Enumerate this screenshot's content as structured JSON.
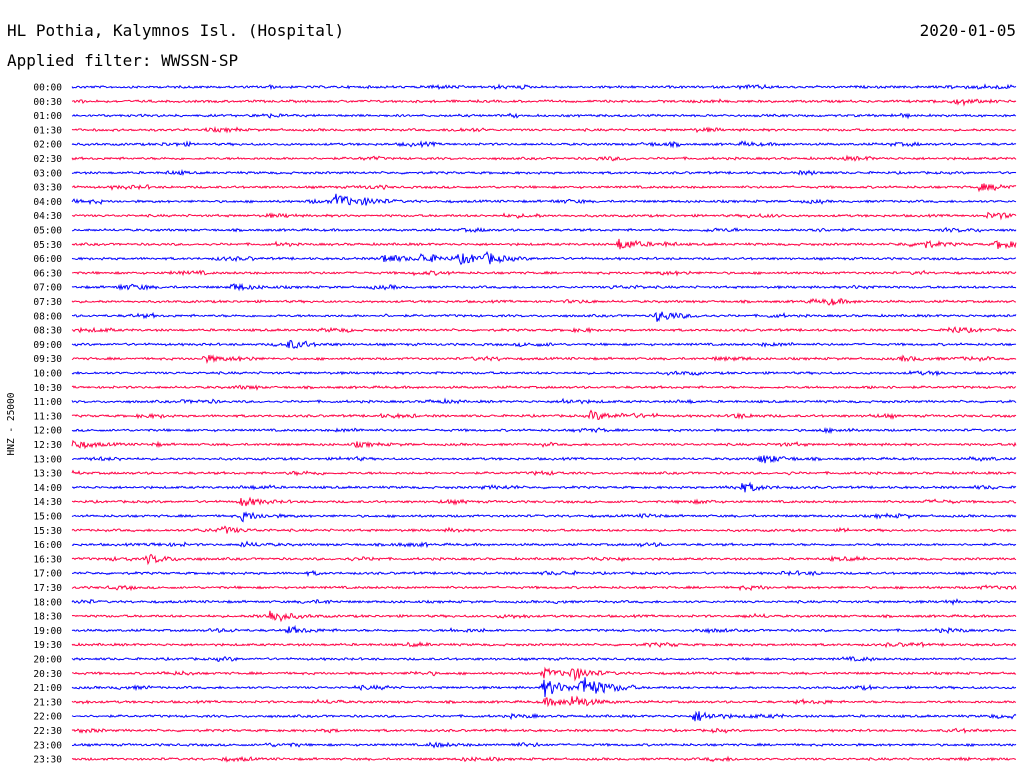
{
  "header": {
    "station": "HL Pothia, Kalymnos Isl. (Hospital)",
    "date": "2020-01-05",
    "filter": "Applied filter: WWSSN-SP"
  },
  "chart_data": {
    "type": "line",
    "title": "HL Pothia, Kalymnos Isl. (Hospital)",
    "ylabel": "HNZ - 25000",
    "trace_colors": [
      "#0000ff",
      "#ff0044"
    ],
    "rows": [
      {
        "label": "00:00",
        "events": [
          [
            0.38,
            1.5
          ],
          [
            0.93,
            1.2
          ]
        ]
      },
      {
        "label": "00:30",
        "events": [
          [
            0.94,
            2.0
          ]
        ]
      },
      {
        "label": "01:00",
        "events": []
      },
      {
        "label": "01:30",
        "events": []
      },
      {
        "label": "02:00",
        "events": [
          [
            0.71,
            1.5
          ]
        ]
      },
      {
        "label": "02:30",
        "events": []
      },
      {
        "label": "03:00",
        "events": []
      },
      {
        "label": "03:30",
        "events": [
          [
            0.96,
            3.0
          ]
        ]
      },
      {
        "label": "04:00",
        "events": [
          [
            0.28,
            6.0
          ],
          [
            0.31,
            2.0
          ]
        ]
      },
      {
        "label": "04:30",
        "events": [
          [
            0.97,
            2.0
          ]
        ]
      },
      {
        "label": "05:00",
        "events": [
          [
            0.78,
            1.8
          ]
        ]
      },
      {
        "label": "05:30",
        "events": [
          [
            0.58,
            5.0
          ],
          [
            0.9,
            3.0
          ],
          [
            0.98,
            4.0
          ]
        ]
      },
      {
        "label": "06:00",
        "events": [
          [
            0.33,
            4.0
          ],
          [
            0.37,
            4.0
          ],
          [
            0.41,
            4.0
          ],
          [
            0.44,
            3.5
          ]
        ]
      },
      {
        "label": "06:30",
        "events": []
      },
      {
        "label": "07:00",
        "events": [
          [
            0.05,
            2.0
          ],
          [
            0.17,
            3.0
          ]
        ]
      },
      {
        "label": "07:30",
        "events": [
          [
            0.8,
            2.0
          ]
        ]
      },
      {
        "label": "08:00",
        "events": [
          [
            0.62,
            5.0
          ]
        ]
      },
      {
        "label": "08:30",
        "events": [
          [
            0.93,
            3.0
          ]
        ]
      },
      {
        "label": "09:00",
        "events": [
          [
            0.23,
            3.0
          ]
        ]
      },
      {
        "label": "09:30",
        "events": [
          [
            0.14,
            3.0
          ],
          [
            0.88,
            2.0
          ]
        ]
      },
      {
        "label": "10:00",
        "events": []
      },
      {
        "label": "10:30",
        "events": []
      },
      {
        "label": "11:00",
        "events": [
          [
            0.52,
            2.0
          ]
        ]
      },
      {
        "label": "11:30",
        "events": [
          [
            0.55,
            4.0
          ],
          [
            0.7,
            2.0
          ]
        ]
      },
      {
        "label": "12:00",
        "events": []
      },
      {
        "label": "12:30",
        "events": [
          [
            0.0,
            4.0
          ],
          [
            0.3,
            2.0
          ]
        ]
      },
      {
        "label": "13:00",
        "events": [
          [
            0.73,
            4.0
          ]
        ]
      },
      {
        "label": "13:30",
        "events": []
      },
      {
        "label": "14:00",
        "events": [
          [
            0.71,
            3.0
          ]
        ]
      },
      {
        "label": "14:30",
        "events": [
          [
            0.18,
            4.0
          ]
        ]
      },
      {
        "label": "15:00",
        "events": [
          [
            0.18,
            4.0
          ]
        ]
      },
      {
        "label": "15:30",
        "events": [
          [
            0.16,
            2.5
          ]
        ]
      },
      {
        "label": "16:00",
        "events": [
          [
            0.18,
            2.0
          ]
        ]
      },
      {
        "label": "16:30",
        "events": [
          [
            0.08,
            4.0
          ]
        ]
      },
      {
        "label": "17:00",
        "events": []
      },
      {
        "label": "17:30",
        "events": []
      },
      {
        "label": "18:00",
        "events": []
      },
      {
        "label": "18:30",
        "events": [
          [
            0.21,
            5.0
          ]
        ]
      },
      {
        "label": "19:00",
        "events": [
          [
            0.23,
            3.0
          ]
        ]
      },
      {
        "label": "19:30",
        "events": []
      },
      {
        "label": "20:00",
        "events": []
      },
      {
        "label": "20:30",
        "events": [
          [
            0.5,
            4.0
          ],
          [
            0.53,
            5.0
          ]
        ]
      },
      {
        "label": "21:00",
        "events": [
          [
            0.5,
            8.0
          ],
          [
            0.54,
            10.0
          ]
        ]
      },
      {
        "label": "21:30",
        "events": [
          [
            0.5,
            3.0
          ],
          [
            0.53,
            4.0
          ]
        ]
      },
      {
        "label": "22:00",
        "events": [
          [
            0.66,
            5.0
          ]
        ]
      },
      {
        "label": "22:30",
        "events": []
      },
      {
        "label": "23:00",
        "events": [
          [
            0.38,
            2.0
          ]
        ]
      },
      {
        "label": "23:30",
        "events": []
      }
    ]
  }
}
